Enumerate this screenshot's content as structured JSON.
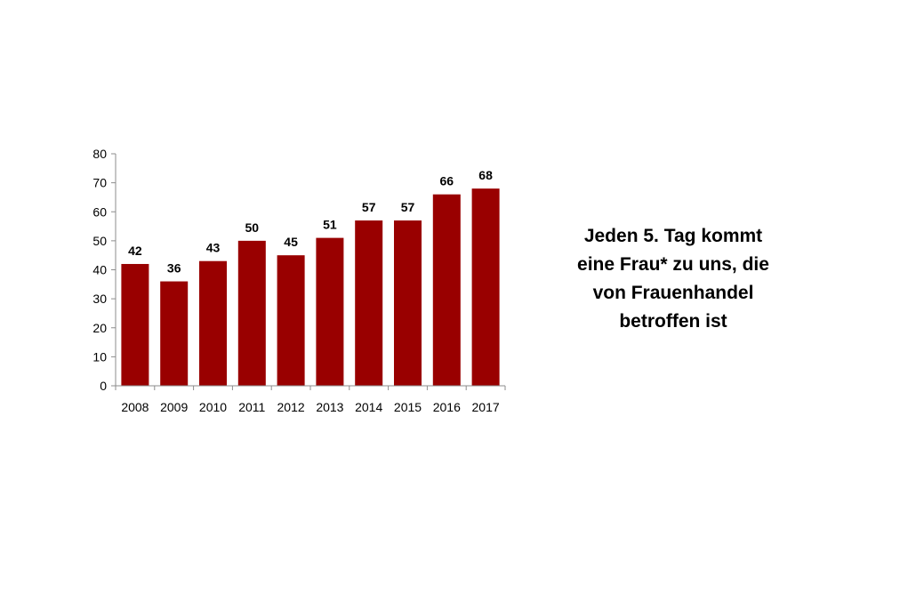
{
  "chart_data": {
    "type": "bar",
    "categories": [
      "2008",
      "2009",
      "2010",
      "2011",
      "2012",
      "2013",
      "2014",
      "2015",
      "2016",
      "2017"
    ],
    "values": [
      42,
      36,
      43,
      50,
      45,
      51,
      57,
      57,
      66,
      68
    ],
    "data_labels": [
      "42",
      "36",
      "43",
      "50",
      "45",
      "51",
      "57",
      "57",
      "66",
      "68"
    ],
    "yticks": [
      "0",
      "10",
      "20",
      "30",
      "40",
      "50",
      "60",
      "70",
      "80"
    ],
    "ylim": [
      0,
      80
    ],
    "grid": false,
    "legend": "none",
    "bar_color": "#990000"
  },
  "caption": {
    "lines": [
      "Jeden 5. Tag kommt",
      "eine Frau* zu uns, die",
      "von Frauenhandel",
      "betroffen ist"
    ]
  }
}
